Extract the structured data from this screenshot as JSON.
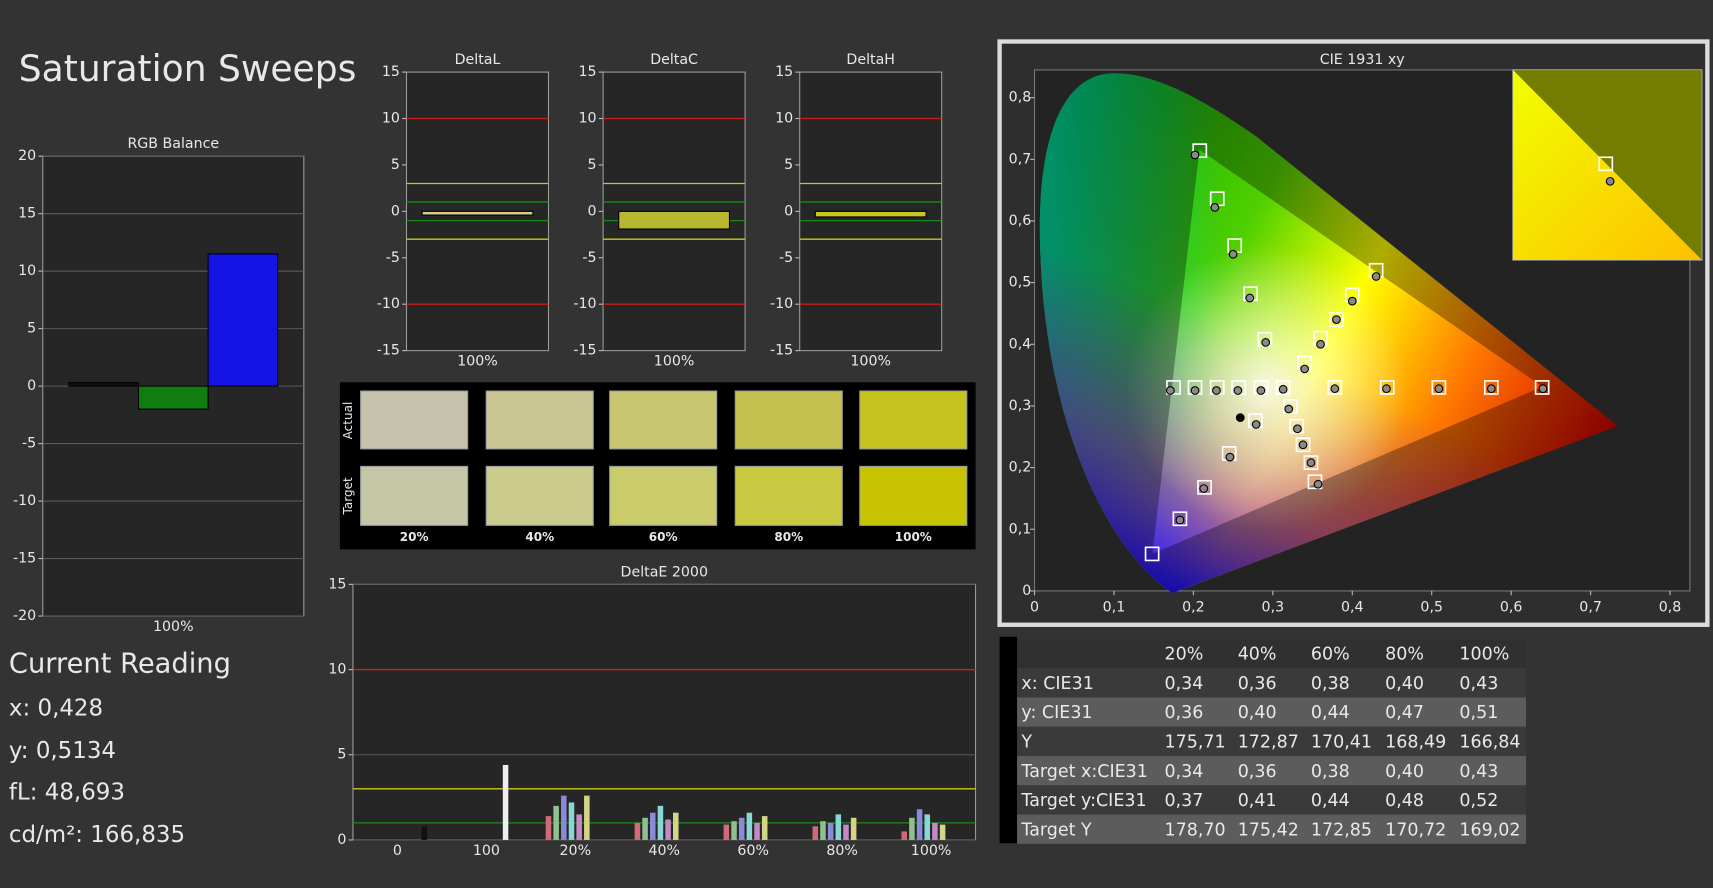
{
  "title": "Saturation Sweeps",
  "chart_data": [
    {
      "type": "bar",
      "title": "RGB Balance",
      "categories": [
        "100%"
      ],
      "series": [
        {
          "color": "#101010",
          "values": [
            0.3
          ]
        },
        {
          "color": "#0f7d0f",
          "values": [
            -2
          ]
        },
        {
          "color": "#1414e6",
          "values": [
            11.5
          ]
        }
      ],
      "ylim": [
        -20,
        20
      ],
      "yticks": [
        -20,
        -15,
        -10,
        -5,
        0,
        5,
        10,
        15,
        20
      ],
      "grid": true
    },
    {
      "type": "bar",
      "title": "DeltaL",
      "categories": [
        "100%"
      ],
      "series": [
        {
          "color": "#d2cc88",
          "values": [
            -0.4
          ]
        }
      ],
      "ylim": [
        -15,
        15
      ],
      "yticks": [
        -15,
        -10,
        -5,
        0,
        5,
        10,
        15
      ],
      "grid": false,
      "reference_lines": [
        {
          "value": 10,
          "color": "#c82020"
        },
        {
          "value": 3,
          "color": "#c8c820"
        },
        {
          "value": 1,
          "color": "#1a8a1a"
        },
        {
          "value": -1,
          "color": "#1a8a1a"
        },
        {
          "value": -3,
          "color": "#c8c820"
        },
        {
          "value": -10,
          "color": "#c82020"
        }
      ]
    },
    {
      "type": "bar",
      "title": "DeltaC",
      "categories": [
        "100%"
      ],
      "series": [
        {
          "color": "#b8b830",
          "values": [
            -1.9
          ]
        }
      ],
      "ylim": [
        -15,
        15
      ],
      "yticks": [
        -15,
        -10,
        -5,
        0,
        5,
        10,
        15
      ],
      "grid": false,
      "reference_lines": [
        {
          "value": 10,
          "color": "#c82020"
        },
        {
          "value": 3,
          "color": "#c8c820"
        },
        {
          "value": 1,
          "color": "#1a8a1a"
        },
        {
          "value": -1,
          "color": "#1a8a1a"
        },
        {
          "value": -3,
          "color": "#c8c820"
        },
        {
          "value": -10,
          "color": "#c82020"
        }
      ]
    },
    {
      "type": "bar",
      "title": "DeltaH",
      "categories": [
        "100%"
      ],
      "series": [
        {
          "color": "#c8c820",
          "values": [
            -0.6
          ]
        }
      ],
      "ylim": [
        -15,
        15
      ],
      "yticks": [
        -15,
        -10,
        -5,
        0,
        5,
        10,
        15
      ],
      "grid": false,
      "reference_lines": [
        {
          "value": 10,
          "color": "#c82020"
        },
        {
          "value": 3,
          "color": "#c8c820"
        },
        {
          "value": 1,
          "color": "#1a8a1a"
        },
        {
          "value": -1,
          "color": "#1a8a1a"
        },
        {
          "value": -3,
          "color": "#c8c820"
        },
        {
          "value": -10,
          "color": "#c82020"
        }
      ]
    },
    {
      "type": "bar",
      "title": "DeltaE 2000",
      "categories": [
        "0",
        "100",
        "20%",
        "40%",
        "60%",
        "80%",
        "100%"
      ],
      "series": [
        {
          "color": "#d06a78",
          "values": [
            null,
            null,
            1.4,
            1.0,
            0.9,
            0.8,
            0.5
          ]
        },
        {
          "color": "#90c090",
          "values": [
            null,
            null,
            2.0,
            1.3,
            1.1,
            1.1,
            1.3
          ]
        },
        {
          "color": "#8a8ad8",
          "values": [
            null,
            null,
            2.6,
            1.6,
            1.3,
            1.0,
            1.8
          ]
        },
        {
          "color": "#88d6d6",
          "values": [
            null,
            null,
            2.2,
            2.0,
            1.6,
            1.5,
            1.5
          ]
        },
        {
          "color": "#c488c4",
          "values": [
            null,
            null,
            1.5,
            1.2,
            1.0,
            0.9,
            1.0
          ]
        },
        {
          "color": "#d4d488",
          "values": [
            null,
            null,
            2.6,
            1.6,
            1.4,
            1.3,
            0.9
          ]
        },
        {
          "color": "#eeeeee",
          "values": [
            null,
            4.4,
            null,
            null,
            null,
            null,
            null
          ]
        },
        {
          "color": "#111111",
          "values": [
            0.8,
            null,
            null,
            null,
            null,
            null,
            null
          ]
        }
      ],
      "ylim": [
        0,
        15
      ],
      "yticks": [
        0,
        5,
        10,
        15
      ],
      "grid": true,
      "reference_lines": [
        {
          "value": 10,
          "color": "#c82020"
        },
        {
          "value": 3,
          "color": "#c8c820"
        },
        {
          "value": 1,
          "color": "#1a8a1a"
        }
      ]
    },
    {
      "type": "scatter",
      "title": "CIE 1931 xy",
      "xlim": [
        0,
        0.825
      ],
      "ylim": [
        0,
        0.845
      ],
      "xticks": [
        0,
        {
          "value": 0.1,
          "label": "0,1"
        },
        {
          "value": 0.2,
          "label": "0,2"
        },
        {
          "value": 0.3,
          "label": "0,3"
        },
        {
          "value": 0.4,
          "label": "0,4"
        },
        {
          "value": 0.5,
          "label": "0,5"
        },
        {
          "value": 0.6,
          "label": "0,6"
        },
        {
          "value": 0.7,
          "label": "0,7"
        },
        {
          "value": 0.8,
          "label": "0,8"
        }
      ],
      "yticks": [
        0,
        {
          "value": 0.1,
          "label": "0,1"
        },
        {
          "value": 0.2,
          "label": "0,2"
        },
        {
          "value": 0.3,
          "label": "0,3"
        },
        {
          "value": 0.4,
          "label": "0,4"
        },
        {
          "value": 0.5,
          "label": "0,5"
        },
        {
          "value": 0.6,
          "label": "0,6"
        },
        {
          "value": 0.7,
          "label": "0,7"
        },
        {
          "value": 0.8,
          "label": "0,8"
        }
      ],
      "series": [
        {
          "marker": "square",
          "color": "#ffffff",
          "x": [
            0.313,
            0.378,
            0.444,
            0.509,
            0.575,
            0.639,
            0.29,
            0.272,
            0.252,
            0.23,
            0.208,
            0.278,
            0.245,
            0.214,
            0.183,
            0.148,
            0.285,
            0.257,
            0.23,
            0.202,
            0.175,
            0.322,
            0.33,
            0.338,
            0.348,
            0.353,
            0.34,
            0.36,
            0.38,
            0.4,
            0.43
          ],
          "values": [
            0.33,
            0.33,
            0.33,
            0.33,
            0.33,
            0.33,
            0.408,
            0.482,
            0.56,
            0.636,
            0.714,
            0.276,
            0.223,
            0.168,
            0.117,
            0.06,
            0.33,
            0.33,
            0.33,
            0.33,
            0.33,
            0.299,
            0.267,
            0.237,
            0.208,
            0.177,
            0.37,
            0.41,
            0.44,
            0.48,
            0.52
          ]
        },
        {
          "marker": "circle",
          "color": "#8a8a8a",
          "x": [
            0.313,
            0.378,
            0.443,
            0.509,
            0.575,
            0.64,
            0.291,
            0.271,
            0.25,
            0.227,
            0.202,
            0.279,
            0.246,
            0.213,
            0.183,
            0.285,
            0.256,
            0.229,
            0.202,
            0.171,
            0.32,
            0.331,
            0.338,
            0.348,
            0.357,
            0.34,
            0.36,
            0.38,
            0.4,
            0.43
          ],
          "values": [
            0.327,
            0.328,
            0.328,
            0.328,
            0.328,
            0.328,
            0.403,
            0.475,
            0.546,
            0.622,
            0.707,
            0.27,
            0.217,
            0.166,
            0.115,
            0.325,
            0.325,
            0.325,
            0.325,
            0.325,
            0.295,
            0.263,
            0.237,
            0.208,
            0.173,
            0.36,
            0.4,
            0.44,
            0.47,
            0.51
          ]
        },
        {
          "marker": "dot",
          "color": "#000000",
          "x": [
            0.259
          ],
          "values": [
            0.281
          ]
        }
      ]
    }
  ],
  "swatches": {
    "row_labels": [
      "Actual",
      "Target"
    ],
    "columns": [
      "20%",
      "40%",
      "60%",
      "80%",
      "100%"
    ],
    "actual_colors": [
      "#c5c1ab",
      "#c9c592",
      "#c8c66e",
      "#c3c04d",
      "#c6c21f"
    ],
    "target_colors": [
      "#c5c6a5",
      "#cbcb8e",
      "#cacb6a",
      "#c9c941",
      "#c7c300"
    ]
  },
  "current_reading": {
    "title": "Current Reading",
    "lines": [
      "x: 0,428",
      "y: 0,5134",
      "fL: 48,693",
      "cd/m²: 166,835"
    ]
  },
  "table": {
    "columns": [
      "20%",
      "40%",
      "60%",
      "80%",
      "100%"
    ],
    "rows": [
      {
        "label": "x: CIE31",
        "cells": [
          "0,34",
          "0,36",
          "0,38",
          "0,40",
          "0,43"
        ]
      },
      {
        "label": "y: CIE31",
        "cells": [
          "0,36",
          "0,40",
          "0,44",
          "0,47",
          "0,51"
        ]
      },
      {
        "label": "Y",
        "cells": [
          "175,71",
          "172,87",
          "170,41",
          "168,49",
          "166,84"
        ]
      },
      {
        "label": "Target x:CIE31",
        "cells": [
          "0,34",
          "0,36",
          "0,38",
          "0,40",
          "0,43"
        ]
      },
      {
        "label": "Target y:CIE31",
        "cells": [
          "0,37",
          "0,41",
          "0,44",
          "0,48",
          "0,52"
        ]
      },
      {
        "label": "Target Y",
        "cells": [
          "178,70",
          "175,42",
          "172,85",
          "170,72",
          "169,02"
        ]
      }
    ]
  }
}
